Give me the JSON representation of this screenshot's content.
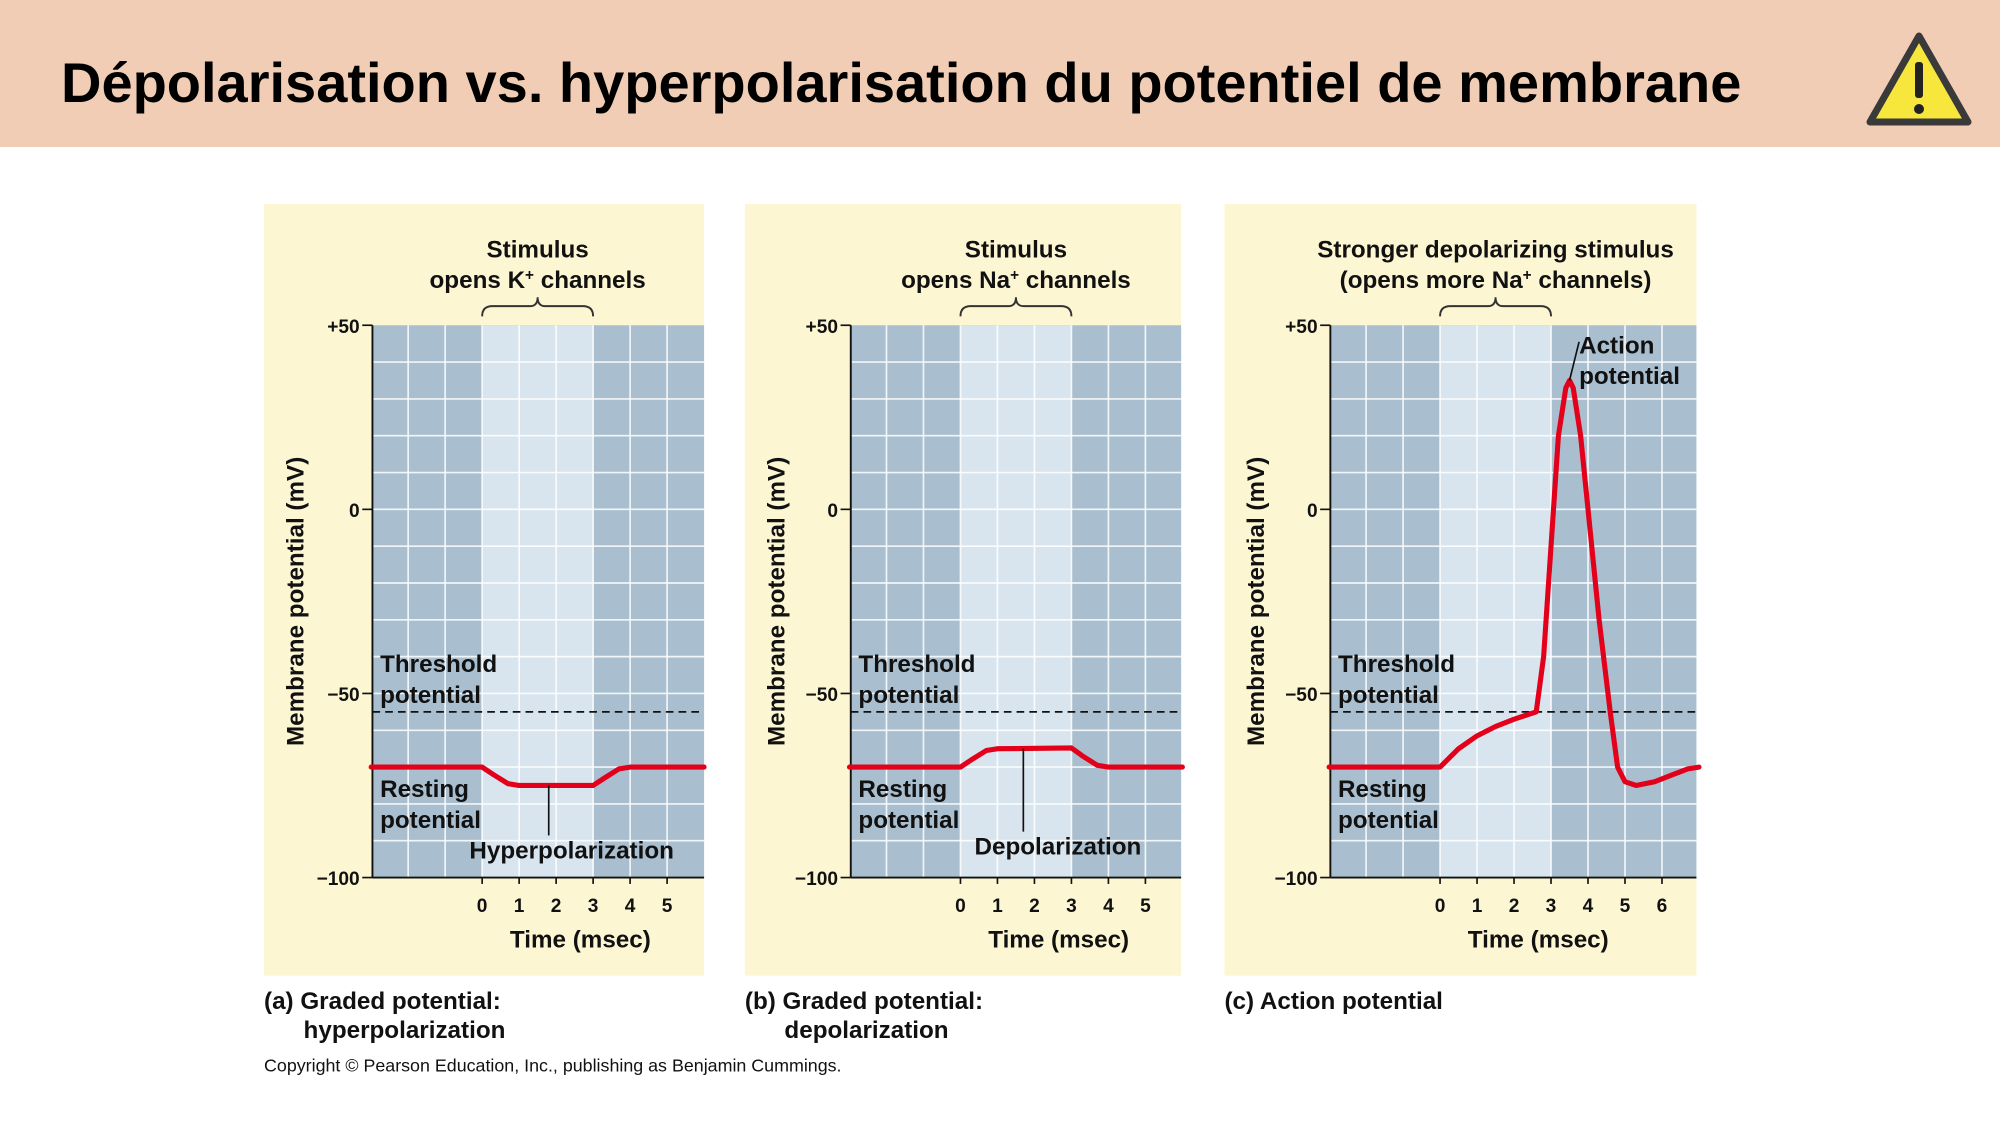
{
  "header": {
    "title": "Dépolarisation vs. hyperpolarisation du potentiel de membrane",
    "icon": "warning-icon",
    "background": "#f0cdb4"
  },
  "colors": {
    "panel_bg": "#fdf6d3",
    "outside_stimulus": "#a9bfcf",
    "during_stimulus": "#d9e5ee",
    "trace": "#e3001b"
  },
  "panels": [
    {
      "stimulus_line1": "Stimulus",
      "stimulus_line2_pre": "opens K",
      "stimulus_sup": "+",
      "stimulus_line2_post": " channels",
      "ylabel": "Membrane potential (mV)",
      "xlabel": "Time (msec)",
      "yticks": [
        "+50",
        "0",
        "−50",
        "−100"
      ],
      "xticks": [
        "0",
        "1",
        "2",
        "3",
        "4",
        "5"
      ],
      "threshold_label": [
        "Threshold",
        "potential"
      ],
      "resting_label": [
        "Resting",
        "potential"
      ],
      "annotation": "Hyperpolarization",
      "caption": [
        "(a) Graded potential:",
        "hyperpolarization"
      ],
      "trace": [
        [
          -3,
          -70
        ],
        [
          0,
          -70
        ],
        [
          0.3,
          -72
        ],
        [
          0.7,
          -74.5
        ],
        [
          1,
          -75
        ],
        [
          3,
          -75
        ],
        [
          3.3,
          -73
        ],
        [
          3.7,
          -70.5
        ],
        [
          4,
          -70
        ],
        [
          6,
          -70
        ]
      ]
    },
    {
      "stimulus_line1": "Stimulus",
      "stimulus_line2_pre": "opens Na",
      "stimulus_sup": "+",
      "stimulus_line2_post": " channels",
      "ylabel": "Membrane potential (mV)",
      "xlabel": "Time (msec)",
      "yticks": [
        "+50",
        "0",
        "−50",
        "−100"
      ],
      "xticks": [
        "0",
        "1",
        "2",
        "3",
        "4",
        "5"
      ],
      "threshold_label": [
        "Threshold",
        "potential"
      ],
      "resting_label": [
        "Resting",
        "potential"
      ],
      "annotation": "Depolarization",
      "caption": [
        "(b) Graded potential:",
        "depolarization"
      ],
      "trace": [
        [
          -3,
          -70
        ],
        [
          0,
          -70
        ],
        [
          0.3,
          -68
        ],
        [
          0.7,
          -65.5
        ],
        [
          1,
          -65
        ],
        [
          3,
          -64.8
        ],
        [
          3.3,
          -67
        ],
        [
          3.7,
          -69.5
        ],
        [
          4,
          -70
        ],
        [
          6,
          -70
        ]
      ]
    },
    {
      "stimulus_line1": "Stronger depolarizing stimulus",
      "stimulus_line2_pre": "(opens more Na",
      "stimulus_sup": "+",
      "stimulus_line2_post": " channels)",
      "ylabel": "Membrane potential (mV)",
      "xlabel": "Time (msec)",
      "yticks": [
        "+50",
        "0",
        "−50",
        "−100"
      ],
      "xticks": [
        "0",
        "1",
        "2",
        "3",
        "4",
        "5",
        "6"
      ],
      "threshold_label": [
        "Threshold",
        "potential"
      ],
      "resting_label": [
        "Resting",
        "potential"
      ],
      "annotation_lines": [
        "Action",
        "potential"
      ],
      "caption": [
        "(c) Action potential"
      ],
      "trace": [
        [
          -3,
          -70
        ],
        [
          0,
          -70
        ],
        [
          0.5,
          -65
        ],
        [
          1,
          -61.5
        ],
        [
          1.5,
          -59
        ],
        [
          2,
          -57
        ],
        [
          2.6,
          -55
        ],
        [
          2.8,
          -40
        ],
        [
          3.0,
          -10
        ],
        [
          3.2,
          20
        ],
        [
          3.4,
          33
        ],
        [
          3.5,
          35
        ],
        [
          3.6,
          33
        ],
        [
          3.8,
          20
        ],
        [
          4.0,
          0
        ],
        [
          4.3,
          -30
        ],
        [
          4.6,
          -55
        ],
        [
          4.8,
          -70
        ],
        [
          5,
          -74
        ],
        [
          5.3,
          -75
        ],
        [
          5.8,
          -74
        ],
        [
          6.3,
          -72
        ],
        [
          6.7,
          -70.5
        ],
        [
          7,
          -70
        ]
      ]
    }
  ],
  "axes": {
    "ylim": [
      -100,
      50
    ],
    "stimulus_ms": [
      0,
      3
    ],
    "threshold_mV": -55,
    "resting_mV": -70
  },
  "copyright": "Copyright © Pearson Education, Inc., publishing as Benjamin Cummings."
}
